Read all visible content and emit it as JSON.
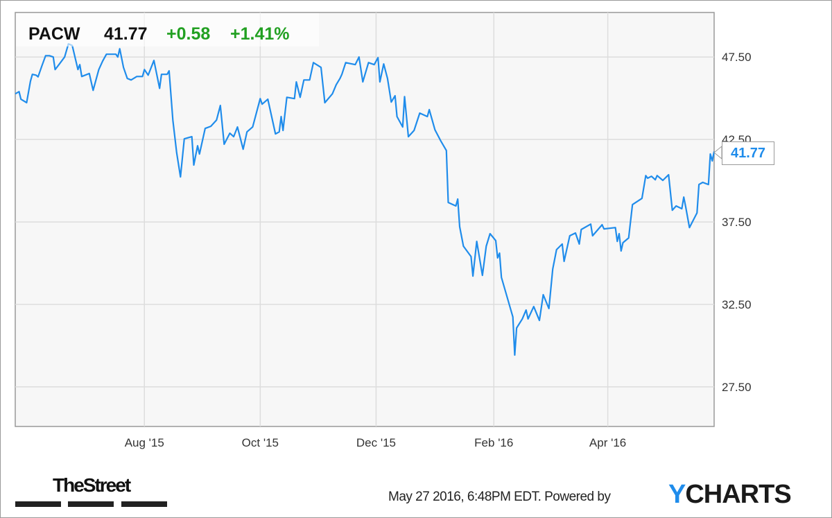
{
  "header": {
    "ticker": "PACW",
    "price": "41.77",
    "change": "+0.58",
    "change_pct": "+1.41%"
  },
  "current_label": "41.77",
  "colors": {
    "line": "#1f8ceb",
    "positive": "#22a022",
    "plot_bg": "#f7f7f7",
    "grid": "#dddddd"
  },
  "footer": {
    "timestamp": "May 27 2016, 6:48PM EDT.",
    "powered_by": "Powered by",
    "brand_y": "Y",
    "brand_rest": "CHARTS",
    "publisher": "TheStreet"
  },
  "chart_data": {
    "type": "line",
    "title": "",
    "xlabel": "",
    "ylabel": "",
    "grid": true,
    "y_axis_side": "right",
    "xlim": [
      "2015-05-25",
      "2016-05-27"
    ],
    "ylim": [
      25.1,
      50.2
    ],
    "x_ticks": [
      {
        "date": "2015-08-01",
        "label": "Aug '15"
      },
      {
        "date": "2015-10-01",
        "label": "Oct '15"
      },
      {
        "date": "2015-12-01",
        "label": "Dec '15"
      },
      {
        "date": "2016-02-01",
        "label": "Feb '16"
      },
      {
        "date": "2016-04-01",
        "label": "Apr '16"
      }
    ],
    "y_ticks": [
      {
        "value": 27.5,
        "label": "27.50"
      },
      {
        "value": 32.5,
        "label": "32.50"
      },
      {
        "value": 37.5,
        "label": "37.50"
      },
      {
        "value": 42.5,
        "label": "42.50"
      },
      {
        "value": 47.5,
        "label": "47.50"
      }
    ],
    "series": [
      {
        "points": [
          [
            "2015-05-25",
            45.27
          ],
          [
            "2015-05-27",
            45.4
          ],
          [
            "2015-05-28",
            44.94
          ],
          [
            "2015-05-31",
            44.73
          ],
          [
            "2015-06-02",
            46.03
          ],
          [
            "2015-06-03",
            46.45
          ],
          [
            "2015-06-05",
            46.4
          ],
          [
            "2015-06-06",
            46.3
          ],
          [
            "2015-06-08",
            46.95
          ],
          [
            "2015-06-10",
            47.58
          ],
          [
            "2015-06-12",
            47.58
          ],
          [
            "2015-06-14",
            47.5
          ],
          [
            "2015-06-15",
            46.74
          ],
          [
            "2015-06-17",
            47.04
          ],
          [
            "2015-06-20",
            47.5
          ],
          [
            "2015-06-22",
            48.3
          ],
          [
            "2015-06-24",
            48.2
          ],
          [
            "2015-06-27",
            46.74
          ],
          [
            "2015-06-28",
            47.04
          ],
          [
            "2015-06-29",
            46.32
          ],
          [
            "2015-07-03",
            46.5
          ],
          [
            "2015-07-05",
            45.48
          ],
          [
            "2015-07-08",
            46.74
          ],
          [
            "2015-07-10",
            47.25
          ],
          [
            "2015-07-12",
            47.67
          ],
          [
            "2015-07-17",
            47.67
          ],
          [
            "2015-07-18",
            47.5
          ],
          [
            "2015-07-19",
            48.0
          ],
          [
            "2015-07-21",
            46.87
          ],
          [
            "2015-07-23",
            46.2
          ],
          [
            "2015-07-25",
            46.11
          ],
          [
            "2015-07-28",
            46.32
          ],
          [
            "2015-07-31",
            46.32
          ],
          [
            "2015-08-01",
            46.74
          ],
          [
            "2015-08-03",
            46.4
          ],
          [
            "2015-08-06",
            47.29
          ],
          [
            "2015-08-09",
            45.6
          ],
          [
            "2015-08-10",
            46.45
          ],
          [
            "2015-08-13",
            46.45
          ],
          [
            "2015-08-14",
            46.66
          ],
          [
            "2015-08-16",
            43.68
          ],
          [
            "2015-08-18",
            41.7
          ],
          [
            "2015-08-20",
            40.23
          ],
          [
            "2015-08-22",
            42.54
          ],
          [
            "2015-08-26",
            42.67
          ],
          [
            "2015-08-27",
            40.95
          ],
          [
            "2015-08-29",
            42.12
          ],
          [
            "2015-08-30",
            41.62
          ],
          [
            "2015-09-02",
            43.17
          ],
          [
            "2015-09-05",
            43.3
          ],
          [
            "2015-09-08",
            43.68
          ],
          [
            "2015-09-10",
            44.56
          ],
          [
            "2015-09-12",
            42.21
          ],
          [
            "2015-09-15",
            42.88
          ],
          [
            "2015-09-17",
            42.67
          ],
          [
            "2015-09-19",
            43.26
          ],
          [
            "2015-09-22",
            41.91
          ],
          [
            "2015-09-24",
            42.96
          ],
          [
            "2015-09-27",
            43.26
          ],
          [
            "2015-10-01",
            44.98
          ],
          [
            "2015-10-02",
            44.64
          ],
          [
            "2015-10-05",
            44.94
          ],
          [
            "2015-10-09",
            42.84
          ],
          [
            "2015-10-11",
            42.96
          ],
          [
            "2015-10-12",
            43.89
          ],
          [
            "2015-10-13",
            43.05
          ],
          [
            "2015-10-15",
            45.06
          ],
          [
            "2015-10-19",
            44.98
          ],
          [
            "2015-10-20",
            45.99
          ],
          [
            "2015-10-22",
            45.06
          ],
          [
            "2015-10-24",
            46.11
          ],
          [
            "2015-10-27",
            46.11
          ],
          [
            "2015-10-29",
            47.16
          ],
          [
            "2015-11-02",
            46.87
          ],
          [
            "2015-11-04",
            44.73
          ],
          [
            "2015-11-08",
            45.27
          ],
          [
            "2015-11-10",
            45.82
          ],
          [
            "2015-11-12",
            46.2
          ],
          [
            "2015-11-13",
            46.45
          ],
          [
            "2015-11-15",
            47.16
          ],
          [
            "2015-11-20",
            47.04
          ],
          [
            "2015-11-22",
            47.5
          ],
          [
            "2015-11-24",
            45.99
          ],
          [
            "2015-11-27",
            47.16
          ],
          [
            "2015-11-30",
            47.04
          ],
          [
            "2015-12-02",
            47.46
          ],
          [
            "2015-12-03",
            45.99
          ],
          [
            "2015-12-05",
            47.08
          ],
          [
            "2015-12-07",
            46.2
          ],
          [
            "2015-12-09",
            44.77
          ],
          [
            "2015-12-11",
            45.15
          ],
          [
            "2015-12-12",
            43.89
          ],
          [
            "2015-12-15",
            43.26
          ],
          [
            "2015-12-16",
            45.1
          ],
          [
            "2015-12-18",
            42.67
          ],
          [
            "2015-12-21",
            43.05
          ],
          [
            "2015-12-24",
            44.1
          ],
          [
            "2015-12-28",
            43.89
          ],
          [
            "2015-12-29",
            44.31
          ],
          [
            "2016-01-01",
            43.09
          ],
          [
            "2016-01-04",
            42.42
          ],
          [
            "2016-01-07",
            41.83
          ],
          [
            "2016-01-08",
            38.68
          ],
          [
            "2016-01-12",
            38.47
          ],
          [
            "2016-01-13",
            38.89
          ],
          [
            "2016-01-14",
            37.21
          ],
          [
            "2016-01-16",
            36.03
          ],
          [
            "2016-01-20",
            35.4
          ],
          [
            "2016-01-21",
            34.22
          ],
          [
            "2016-01-23",
            36.32
          ],
          [
            "2016-01-26",
            34.26
          ],
          [
            "2016-01-28",
            36.03
          ],
          [
            "2016-01-30",
            36.79
          ],
          [
            "2016-02-02",
            36.37
          ],
          [
            "2016-02-03",
            35.32
          ],
          [
            "2016-02-04",
            35.61
          ],
          [
            "2016-02-05",
            34.14
          ],
          [
            "2016-02-09",
            32.54
          ],
          [
            "2016-02-11",
            31.74
          ],
          [
            "2016-02-12",
            29.43
          ],
          [
            "2016-02-13",
            31.07
          ],
          [
            "2016-02-16",
            31.62
          ],
          [
            "2016-02-18",
            32.16
          ],
          [
            "2016-02-19",
            31.62
          ],
          [
            "2016-02-22",
            32.37
          ],
          [
            "2016-02-25",
            31.53
          ],
          [
            "2016-02-27",
            33.09
          ],
          [
            "2016-03-01",
            32.25
          ],
          [
            "2016-03-03",
            34.64
          ],
          [
            "2016-03-05",
            35.82
          ],
          [
            "2016-03-08",
            36.16
          ],
          [
            "2016-03-09",
            35.11
          ],
          [
            "2016-03-12",
            36.66
          ],
          [
            "2016-03-15",
            36.83
          ],
          [
            "2016-03-17",
            36.16
          ],
          [
            "2016-03-18",
            37.04
          ],
          [
            "2016-03-23",
            37.37
          ],
          [
            "2016-03-24",
            36.66
          ],
          [
            "2016-03-29",
            37.33
          ],
          [
            "2016-03-30",
            37.08
          ],
          [
            "2016-04-05",
            37.16
          ],
          [
            "2016-04-06",
            36.32
          ],
          [
            "2016-04-07",
            36.79
          ],
          [
            "2016-04-08",
            35.74
          ],
          [
            "2016-04-09",
            36.24
          ],
          [
            "2016-04-12",
            36.53
          ],
          [
            "2016-04-14",
            38.55
          ],
          [
            "2016-04-19",
            38.93
          ],
          [
            "2016-04-21",
            40.31
          ],
          [
            "2016-04-22",
            40.15
          ],
          [
            "2016-04-24",
            40.27
          ],
          [
            "2016-04-26",
            40.06
          ],
          [
            "2016-04-27",
            40.31
          ],
          [
            "2016-04-30",
            40.02
          ],
          [
            "2016-05-03",
            40.36
          ],
          [
            "2016-05-05",
            38.21
          ],
          [
            "2016-05-07",
            38.47
          ],
          [
            "2016-05-10",
            38.3
          ],
          [
            "2016-05-11",
            39.01
          ],
          [
            "2016-05-12",
            38.43
          ],
          [
            "2016-05-14",
            37.16
          ],
          [
            "2016-05-18",
            38.05
          ],
          [
            "2016-05-19",
            39.77
          ],
          [
            "2016-05-21",
            39.9
          ],
          [
            "2016-05-24",
            39.77
          ],
          [
            "2016-05-25",
            41.62
          ],
          [
            "2016-05-26",
            41.2
          ],
          [
            "2016-05-27",
            41.77
          ]
        ]
      }
    ]
  }
}
